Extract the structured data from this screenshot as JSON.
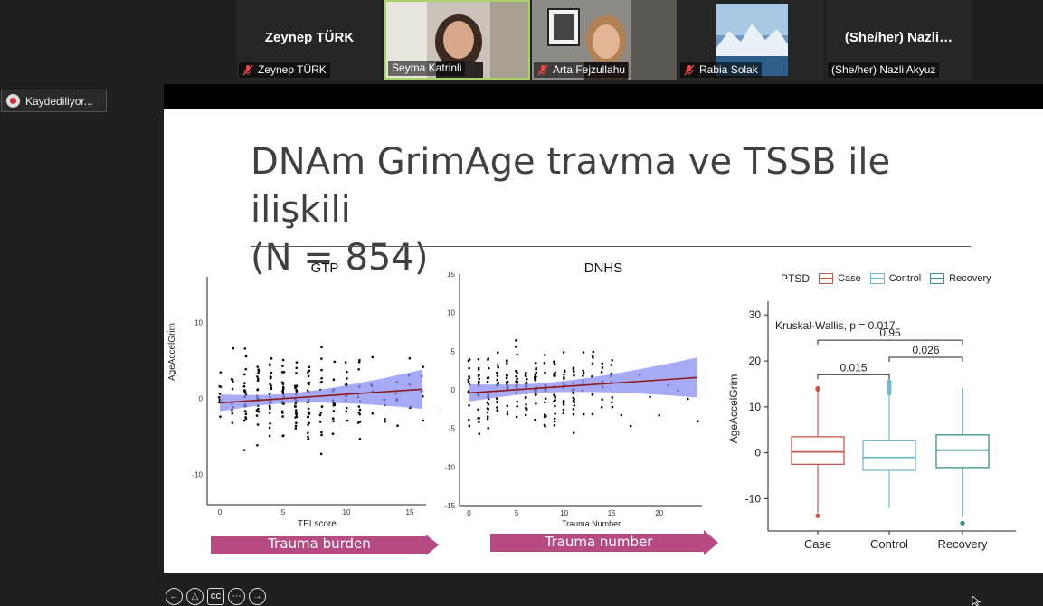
{
  "participants": [
    {
      "name": "Zeynep TÜRK",
      "big_name": "Zeynep TÜRK",
      "muted": true,
      "video": false
    },
    {
      "name": "Seyma Katrinli",
      "big_name": "",
      "muted": false,
      "video": true,
      "speaking": true
    },
    {
      "name": "Arta Fejzullahu",
      "big_name": "",
      "muted": true,
      "video": true
    },
    {
      "name": "Rabia Solak",
      "big_name": "",
      "muted": true,
      "video": true
    },
    {
      "name": "(She/her) Nazli Akyuz",
      "big_name": "(She/her)  Nazli…",
      "muted": false,
      "video": false
    }
  ],
  "recording": {
    "label": "Kaydediliyor..."
  },
  "slide": {
    "title": "DNAm GrimAge travma ve TSSB ile ilişkili\n(N = 854)",
    "panels": {
      "gtp": {
        "title": "GTP",
        "ylabel": "AgeAccelGrim",
        "xlabel": "TEI score",
        "yticks": [
          "10",
          "0",
          "-10"
        ],
        "xticks": [
          "0",
          "5",
          "10",
          "15"
        ],
        "arrow_label": "Trauma burden"
      },
      "dnhs": {
        "title": "DNHS",
        "ylabel": "AgeAccelGrim",
        "xlabel": "Trauma Number",
        "yticks": [
          "15",
          "10",
          "5",
          "0",
          "-5",
          "-10",
          "-15"
        ],
        "xticks": [
          "0",
          "5",
          "10",
          "15",
          "20"
        ],
        "arrow_label": "Trauma number"
      },
      "ptsd": {
        "legend_title": "PTSD",
        "legend": [
          "Case",
          "Control",
          "Recovery"
        ],
        "ylabel": "AgeAccelGrim",
        "yticks": [
          "30",
          "20",
          "10",
          "0",
          "-10"
        ],
        "test_label": "Kruskal-Wallis, p = 0.017",
        "pvals": [
          "0.95",
          "0.015",
          "0.026"
        ],
        "colors": {
          "Case": "#c0584d",
          "Control": "#70b9c8",
          "Recovery": "#3b8f83"
        }
      }
    }
  },
  "chart_data": [
    {
      "type": "scatter",
      "title": "GTP",
      "xlabel": "TEI score",
      "ylabel": "AgeAccelGrim",
      "xlim": [
        -1,
        16.5
      ],
      "ylim": [
        -14,
        16
      ],
      "trend": {
        "x": [
          0,
          16
        ],
        "y": [
          -0.6,
          1.2
        ]
      },
      "band_color": "#8a8ef0",
      "line_color": "#8b1a1a"
    },
    {
      "type": "scatter",
      "title": "DNHS",
      "xlabel": "Trauma Number",
      "ylabel": "AgeAccelGrim",
      "xlim": [
        -1,
        24.5
      ],
      "ylim": [
        -15,
        15
      ],
      "trend": {
        "x": [
          0,
          24
        ],
        "y": [
          -0.4,
          1.6
        ]
      },
      "band_color": "#8a8ef0",
      "line_color": "#8b1a1a"
    },
    {
      "type": "box",
      "categories": [
        "Case",
        "Control",
        "Recovery"
      ],
      "ylabel": "AgeAccelGrim",
      "ylim": [
        -17,
        33
      ],
      "boxes": [
        {
          "name": "Case",
          "q1": -2.5,
          "median": 0.2,
          "q3": 3.5,
          "whisker_low": -13,
          "whisker_high": 13.5,
          "outliers": [
            14,
            13.8,
            -13.7
          ]
        },
        {
          "name": "Control",
          "q1": -3.8,
          "median": -1.0,
          "q3": 2.6,
          "whisker_low": -12,
          "whisker_high": 12.5,
          "outliers": [
            13,
            13.6,
            14.2,
            14.8,
            15.5
          ]
        },
        {
          "name": "Recovery",
          "q1": -3.2,
          "median": 0.6,
          "q3": 3.9,
          "whisker_low": -14,
          "whisker_high": 14.2,
          "outliers": [
            -15.3
          ]
        }
      ],
      "test": "Kruskal-Wallis, p = 0.017",
      "comparisons": [
        {
          "groups": [
            "Case",
            "Recovery"
          ],
          "p": "0.95"
        },
        {
          "groups": [
            "Case",
            "Control"
          ],
          "p": "0.015"
        },
        {
          "groups": [
            "Control",
            "Recovery"
          ],
          "p": "0.026"
        }
      ]
    }
  ]
}
